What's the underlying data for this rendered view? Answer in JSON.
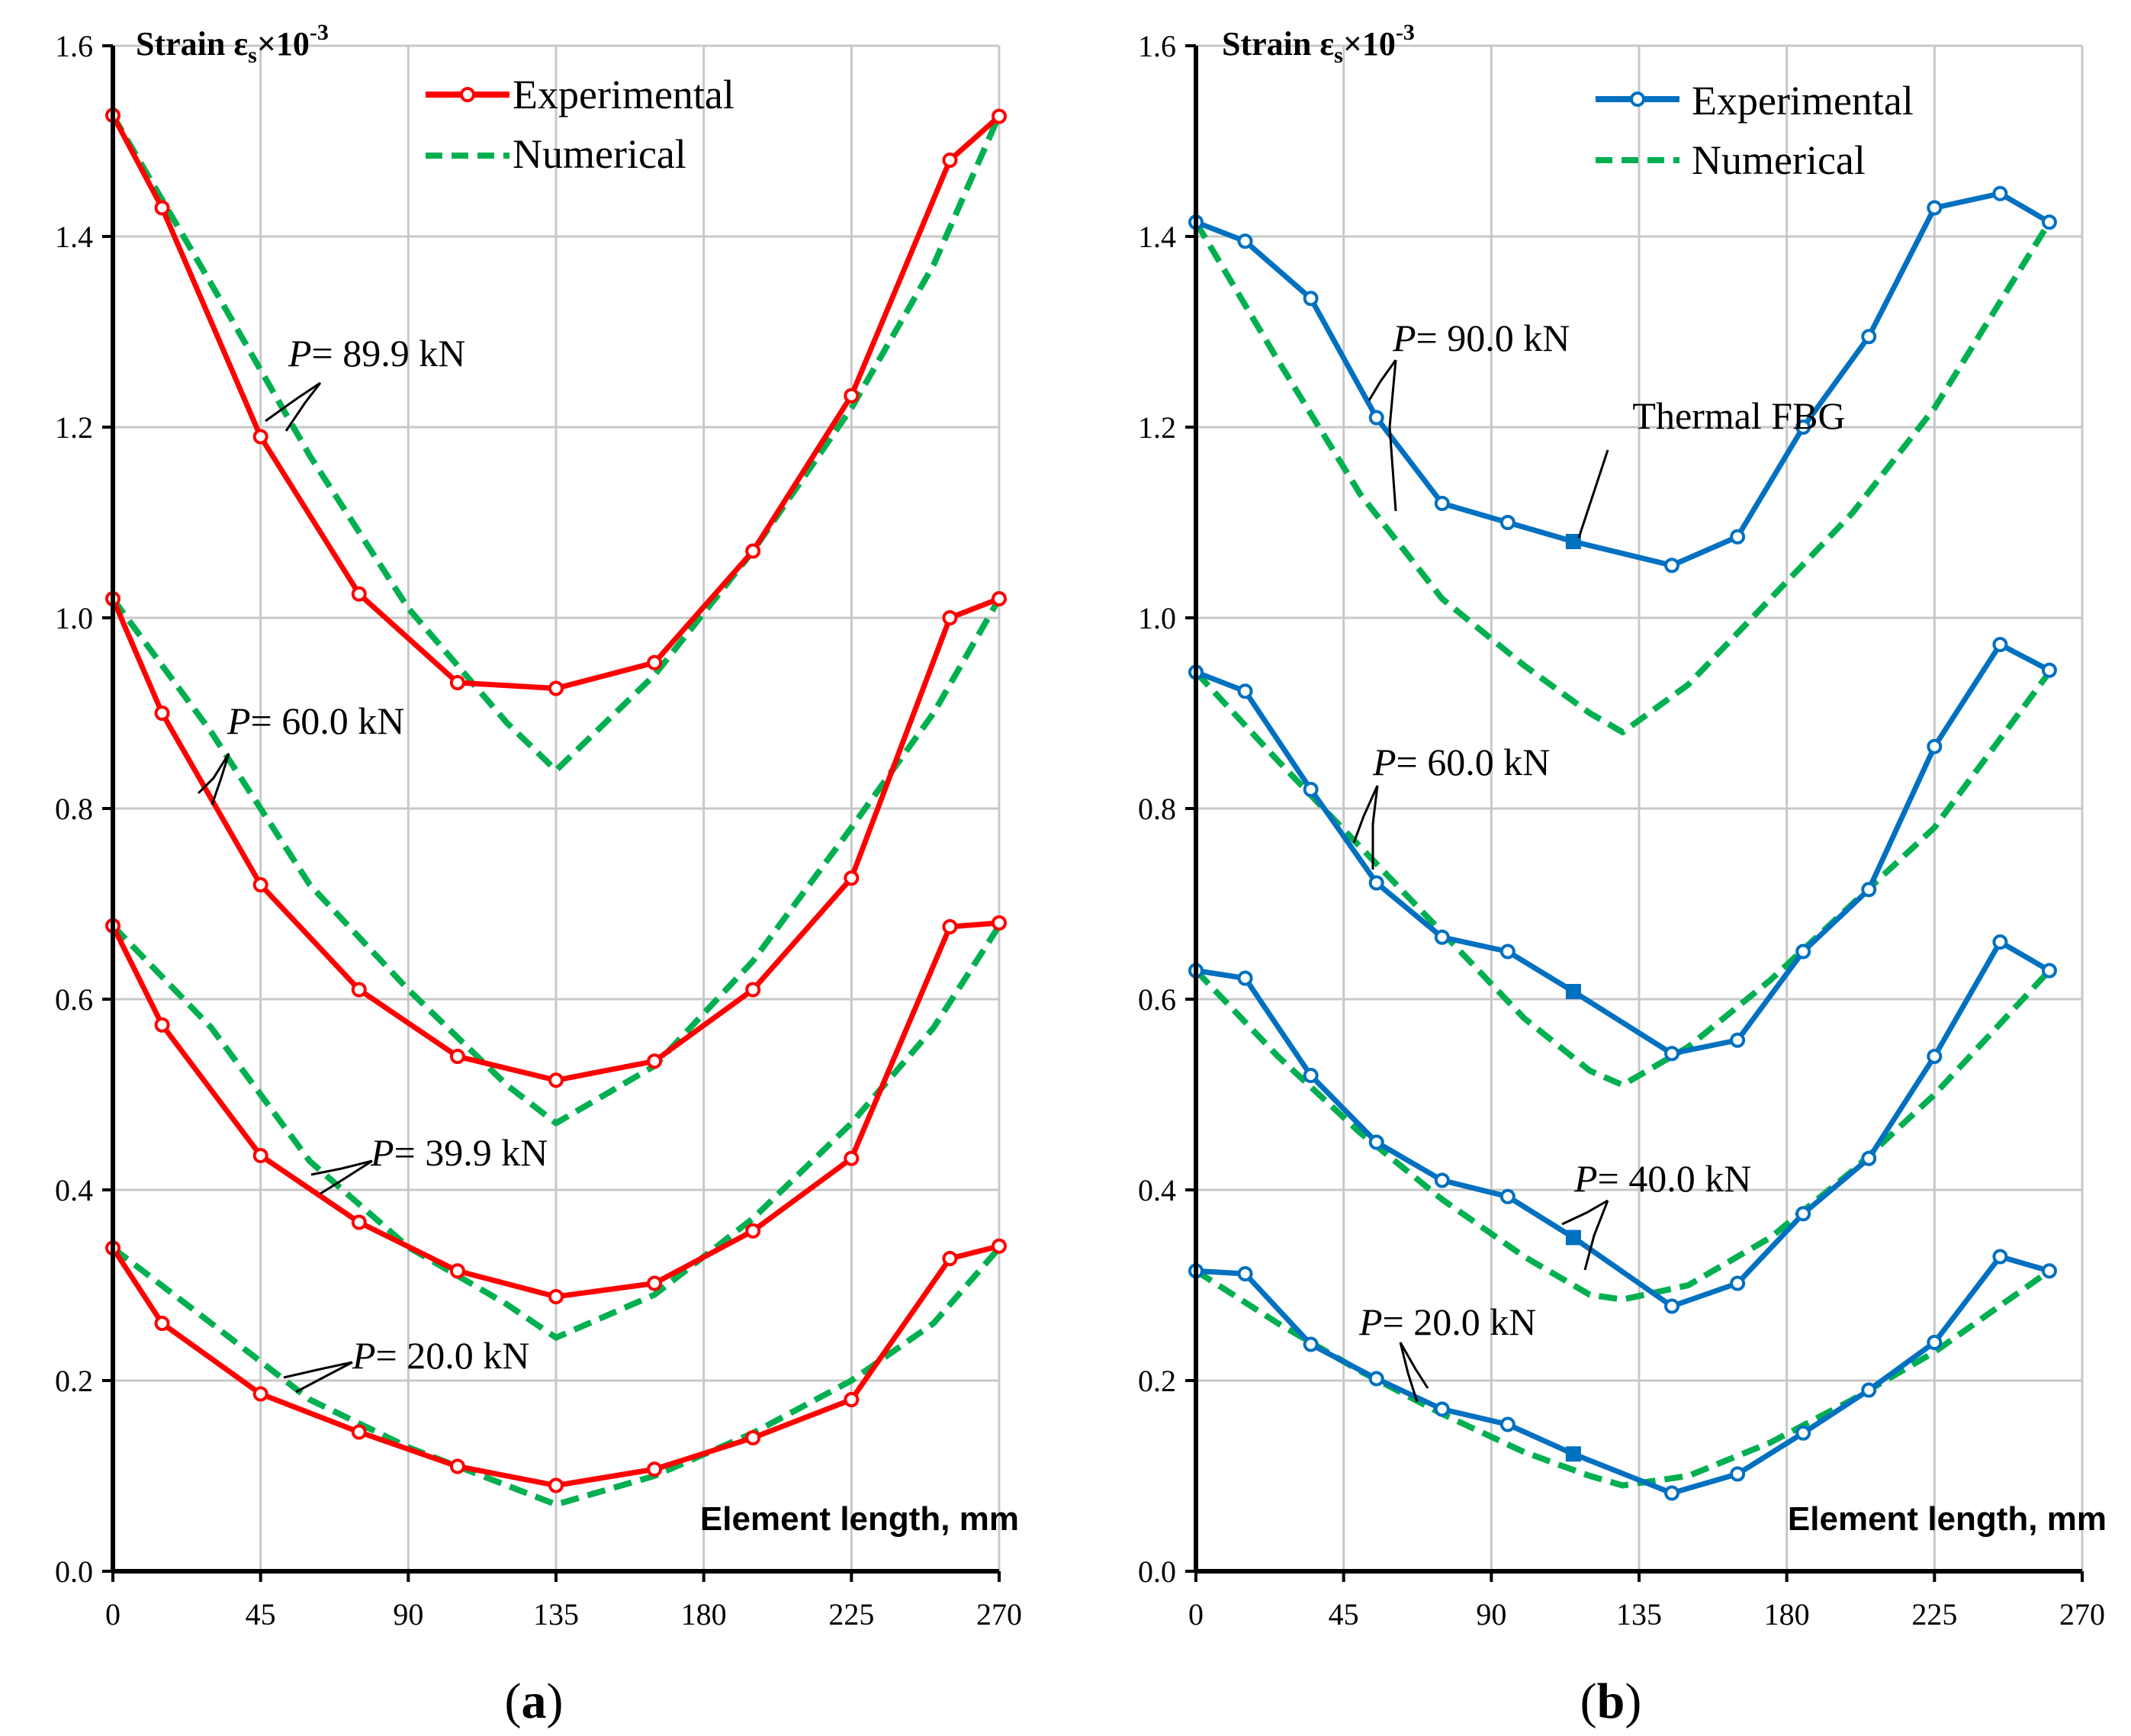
{
  "chart_data": [
    {
      "panel": "a",
      "caption": "(a)",
      "caption_letter": "a",
      "type": "line",
      "ylabel": "Strain εs×10-3",
      "ylabel_main": "Strain ε",
      "ylabel_sub": "s",
      "ylabel_times": "×10",
      "ylabel_sup": "-3",
      "xlabel": "Element length, mm",
      "xlim": [
        0,
        270
      ],
      "ylim": [
        0,
        1.6
      ],
      "xticks": [
        "0",
        "45",
        "90",
        "135",
        "180",
        "225",
        "270"
      ],
      "xtick_values": [
        0,
        45,
        90,
        135,
        180,
        225,
        270
      ],
      "yticks": [
        "0.0",
        "0.2",
        "0.4",
        "0.6",
        "0.8",
        "1.0",
        "1.2",
        "1.4",
        "1.6"
      ],
      "ytick_values": [
        0,
        0.2,
        0.4,
        0.6,
        0.8,
        1.0,
        1.2,
        1.4,
        1.6
      ],
      "grid": true,
      "legend_position": "top-center",
      "legend": [
        "Experimental",
        "Numerical"
      ],
      "colors": {
        "experimental": "#ff0000",
        "numerical": "#00b050"
      },
      "experimental_x": [
        0,
        15,
        45,
        75,
        105,
        135,
        165,
        195,
        225,
        255,
        270
      ],
      "series": [
        {
          "name": "Experimental P= 89.9 kN",
          "values": [
            1.527,
            1.43,
            1.19,
            1.025,
            0.932,
            0.926,
            0.953,
            1.07,
            1.233,
            1.48,
            1.526
          ]
        },
        {
          "name": "Experimental P= 60.0 kN",
          "values": [
            1.02,
            0.9,
            0.72,
            0.61,
            0.54,
            0.515,
            0.535,
            0.61,
            0.727,
            1.0,
            1.02
          ]
        },
        {
          "name": "Experimental P= 39.9 kN",
          "values": [
            0.677,
            0.573,
            0.436,
            0.366,
            0.315,
            0.288,
            0.302,
            0.357,
            0.433,
            0.676,
            0.68
          ]
        },
        {
          "name": "Experimental P= 20.0 kN",
          "values": [
            0.339,
            0.26,
            0.186,
            0.146,
            0.11,
            0.09,
            0.107,
            0.14,
            0.18,
            0.328,
            0.341
          ]
        }
      ],
      "numerical": [
        {
          "name": "Numerical P= 89.9 kN",
          "x": [
            0,
            30,
            60,
            90,
            120,
            135,
            165,
            195,
            225,
            250,
            270
          ],
          "values": [
            1.527,
            1.35,
            1.17,
            1.01,
            0.89,
            0.84,
            0.94,
            1.07,
            1.22,
            1.37,
            1.527
          ]
        },
        {
          "name": "Numerical P= 60.0 kN",
          "x": [
            0,
            30,
            60,
            90,
            120,
            135,
            165,
            195,
            225,
            250,
            270
          ],
          "values": [
            1.02,
            0.88,
            0.72,
            0.61,
            0.51,
            0.47,
            0.53,
            0.64,
            0.78,
            0.9,
            1.02
          ]
        },
        {
          "name": "Numerical P= 39.9 kN",
          "x": [
            0,
            30,
            60,
            90,
            120,
            135,
            165,
            195,
            225,
            250,
            270
          ],
          "values": [
            0.677,
            0.57,
            0.43,
            0.34,
            0.28,
            0.245,
            0.29,
            0.37,
            0.47,
            0.57,
            0.677
          ]
        },
        {
          "name": "Numerical P= 20.0 kN",
          "x": [
            0,
            30,
            60,
            90,
            120,
            135,
            165,
            195,
            225,
            250,
            270
          ],
          "values": [
            0.339,
            0.26,
            0.18,
            0.13,
            0.09,
            0.07,
            0.1,
            0.145,
            0.2,
            0.26,
            0.339
          ]
        }
      ],
      "annotations": [
        "P= 89.9 kN",
        "P= 60.0 kN",
        "P= 39.9 kN",
        "P= 20.0 kN"
      ]
    },
    {
      "panel": "b",
      "caption": "(b)",
      "caption_letter": "b",
      "type": "line",
      "ylabel": "Strain εs×10-3",
      "ylabel_main": "Strain ε",
      "ylabel_sub": "s",
      "ylabel_times": "×10",
      "ylabel_sup": "-3",
      "xlabel": "Element length, mm",
      "xlim": [
        0,
        270
      ],
      "ylim": [
        0,
        1.6
      ],
      "xticks": [
        "0",
        "45",
        "90",
        "135",
        "180",
        "225",
        "270"
      ],
      "xtick_values": [
        0,
        45,
        90,
        135,
        180,
        225,
        270
      ],
      "yticks": [
        "0.0",
        "0.2",
        "0.4",
        "0.6",
        "0.8",
        "1.0",
        "1.2",
        "1.4",
        "1.6"
      ],
      "ytick_values": [
        0,
        0.2,
        0.4,
        0.6,
        0.8,
        1.0,
        1.2,
        1.4,
        1.6
      ],
      "grid": true,
      "legend_position": "top-right",
      "legend": [
        "Experimental",
        "Numerical"
      ],
      "colors": {
        "experimental": "#0070c0",
        "numerical": "#00b050"
      },
      "experimental_x": [
        0,
        15,
        35,
        55,
        75,
        95,
        115,
        145,
        165,
        185,
        205,
        225,
        245,
        260
      ],
      "thermal_fbg_index": 6,
      "thermal_fbg_label": "Thermal FBG",
      "series": [
        {
          "name": "Experimental P= 90.0 kN",
          "values": [
            1.415,
            1.395,
            1.335,
            1.21,
            1.12,
            1.1,
            1.08,
            1.055,
            1.085,
            1.2,
            1.295,
            1.43,
            1.445,
            1.415
          ]
        },
        {
          "name": "Experimental P= 60.0 kN",
          "values": [
            0.943,
            0.923,
            0.82,
            0.722,
            0.665,
            0.65,
            0.608,
            0.543,
            0.557,
            0.65,
            0.715,
            0.865,
            0.972,
            0.945
          ]
        },
        {
          "name": "Experimental P= 40.0 kN",
          "values": [
            0.63,
            0.622,
            0.52,
            0.45,
            0.41,
            0.393,
            0.35,
            0.278,
            0.302,
            0.375,
            0.433,
            0.54,
            0.66,
            0.63
          ]
        },
        {
          "name": "Experimental P= 20.0 kN",
          "values": [
            0.315,
            0.312,
            0.238,
            0.202,
            0.17,
            0.154,
            0.123,
            0.082,
            0.102,
            0.145,
            0.19,
            0.24,
            0.33,
            0.315
          ]
        }
      ],
      "numerical": [
        {
          "name": "Numerical P= 90.0 kN",
          "x": [
            0,
            25,
            50,
            75,
            100,
            120,
            130,
            150,
            175,
            200,
            225,
            260
          ],
          "values": [
            1.415,
            1.27,
            1.13,
            1.02,
            0.95,
            0.9,
            0.88,
            0.93,
            1.02,
            1.11,
            1.22,
            1.415
          ]
        },
        {
          "name": "Numerical P= 60.0 kN",
          "x": [
            0,
            25,
            50,
            75,
            100,
            120,
            130,
            150,
            175,
            200,
            225,
            260
          ],
          "values": [
            0.943,
            0.85,
            0.76,
            0.67,
            0.58,
            0.525,
            0.51,
            0.55,
            0.62,
            0.7,
            0.78,
            0.943
          ]
        },
        {
          "name": "Numerical P= 40.0 kN",
          "x": [
            0,
            25,
            50,
            75,
            100,
            120,
            130,
            150,
            175,
            200,
            225,
            260
          ],
          "values": [
            0.63,
            0.54,
            0.46,
            0.39,
            0.33,
            0.29,
            0.285,
            0.3,
            0.35,
            0.42,
            0.5,
            0.63
          ]
        },
        {
          "name": "Numerical P= 20.0 kN",
          "x": [
            0,
            25,
            50,
            75,
            100,
            120,
            130,
            150,
            175,
            200,
            225,
            260
          ],
          "values": [
            0.315,
            0.26,
            0.21,
            0.165,
            0.125,
            0.1,
            0.09,
            0.1,
            0.135,
            0.18,
            0.23,
            0.315
          ]
        }
      ],
      "annotations": [
        "P= 90.0 kN",
        "P= 60.0 kN",
        "P= 40.0 kN",
        "P= 20.0 kN"
      ]
    }
  ]
}
